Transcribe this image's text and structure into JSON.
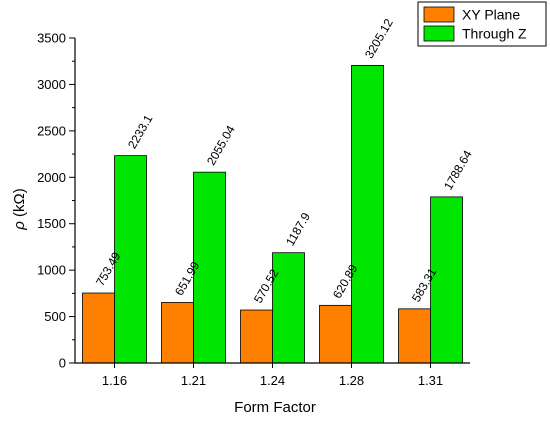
{
  "chart_data": {
    "type": "bar",
    "title": "",
    "xlabel": "Form Factor",
    "ylabel": "ρ (kΩ)",
    "ylabel_symbol": "ρ",
    "ylabel_unit": " (kΩ)",
    "categories": [
      "1.16",
      "1.21",
      "1.24",
      "1.28",
      "1.31"
    ],
    "series": [
      {
        "name": "XY Plane",
        "color": "#ff8000",
        "values": [
          753.49,
          651.99,
          570.52,
          620.89,
          583.31
        ],
        "labels": [
          "753.49",
          "651.99",
          "570.52",
          "620.89",
          "583.31"
        ]
      },
      {
        "name": "Through Z",
        "color": "#00e600",
        "values": [
          2233.1,
          2055.04,
          1187.9,
          3205.12,
          1788.64
        ],
        "labels": [
          "2233.1",
          "2055.04",
          "1187.9",
          "3205.12",
          "1788.64"
        ]
      }
    ],
    "ylim": [
      0,
      3500
    ],
    "yticks": [
      0,
      500,
      1000,
      1500,
      2000,
      2500,
      3000,
      3500
    ],
    "yminor_step": 250,
    "grid": false,
    "legend": "top-right"
  }
}
